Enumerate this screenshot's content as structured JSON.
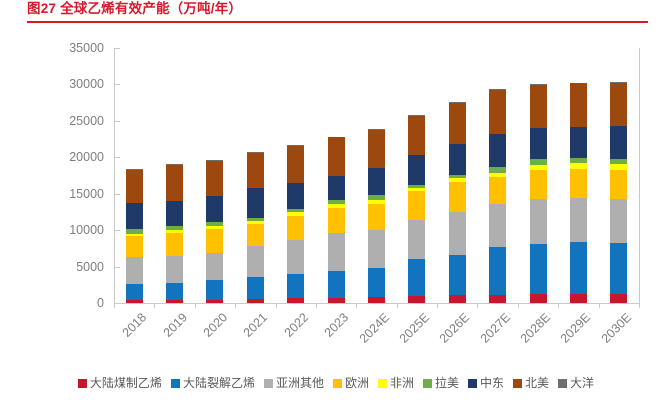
{
  "header": {
    "title": "图27 全球乙烯有效产能（万吨/年）",
    "accent_color": "#D7182A"
  },
  "chart_data": {
    "type": "bar",
    "stacked": true,
    "title": "全球乙烯有效产能（万吨/年）",
    "xlabel": "",
    "ylabel": "",
    "ylim": [
      0,
      35000
    ],
    "yticks": [
      "0",
      "5000",
      "10000",
      "15000",
      "20000",
      "25000",
      "30000",
      "35000"
    ],
    "grid": false,
    "legend_position": "bottom",
    "axis_color": "#c9c9c9",
    "tick_label_color": "#7f7f7f",
    "legend_text_color": "#595959",
    "categories": [
      "2018",
      "2019",
      "2020",
      "2021",
      "2022",
      "2023",
      "2024E",
      "2025E",
      "2026E",
      "2027E",
      "2028E",
      "2029E",
      "2030E"
    ],
    "series": [
      {
        "name": "大陆煤制乙烯",
        "color": "#C9152E",
        "values": [
          370,
          420,
          480,
          560,
          640,
          700,
          790,
          920,
          1050,
          1150,
          1280,
          1280,
          1250
        ]
      },
      {
        "name": "大陆裂解乙烯",
        "color": "#1274BE",
        "values": [
          2180,
          2320,
          2620,
          3010,
          3380,
          3640,
          4010,
          5120,
          5580,
          6530,
          6860,
          7030,
          6980
        ]
      },
      {
        "name": "亚洲其他",
        "color": "#AFAFAF",
        "values": [
          3760,
          3650,
          3760,
          4200,
          4570,
          5310,
          5260,
          5390,
          5800,
          5940,
          6130,
          6090,
          6040
        ]
      },
      {
        "name": "欧洲",
        "color": "#FFC000",
        "values": [
          2920,
          3210,
          3290,
          3020,
          3390,
          3430,
          3570,
          3880,
          4120,
          3660,
          4020,
          3980,
          4020
        ]
      },
      {
        "name": "非洲",
        "color": "#FFFF00",
        "values": [
          270,
          450,
          360,
          410,
          450,
          550,
          550,
          470,
          600,
          630,
          690,
          820,
          820
        ]
      },
      {
        "name": "拉美",
        "color": "#6FAD47",
        "values": [
          650,
          550,
          550,
          470,
          470,
          550,
          690,
          450,
          450,
          740,
          780,
          690,
          730
        ]
      },
      {
        "name": "中东",
        "color": "#1F3968",
        "values": [
          3650,
          3470,
          3570,
          4120,
          3570,
          3290,
          3660,
          4120,
          4220,
          4570,
          4250,
          4340,
          4530
        ]
      },
      {
        "name": "北美",
        "color": "#9C480E",
        "values": [
          4450,
          4940,
          4890,
          4780,
          5150,
          5290,
          5250,
          5390,
          5620,
          6040,
          5980,
          5940,
          5850
        ]
      },
      {
        "name": "大洋",
        "color": "#6E6E6E",
        "values": [
          100,
          100,
          100,
          100,
          100,
          100,
          100,
          100,
          100,
          100,
          100,
          100,
          100
        ]
      }
    ],
    "totals": [
      18350,
      19110,
      19620,
      20670,
      21720,
      22860,
      23880,
      25840,
      27540,
      29360,
      30090,
      30270,
      30320
    ]
  }
}
